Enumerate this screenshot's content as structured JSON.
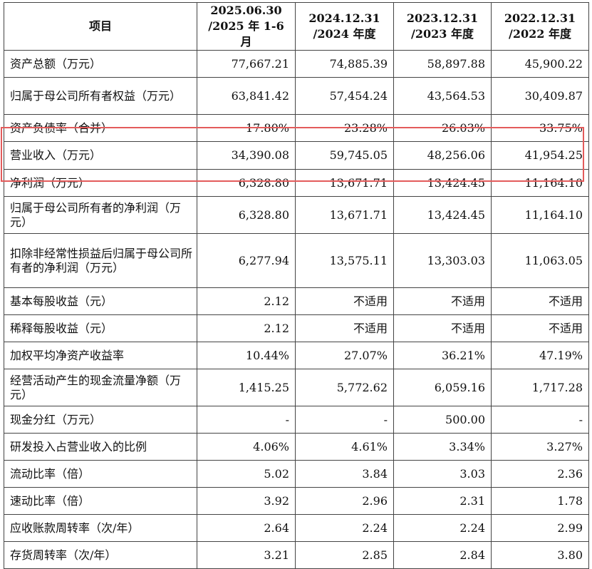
{
  "header": {
    "item": "项目",
    "columns": [
      {
        "line1": "2025.06.30",
        "line2": "/2025 年 1-6 月"
      },
      {
        "line1": "2024.12.31",
        "line2": "/2024 年度"
      },
      {
        "line1": "2023.12.31",
        "line2": "/2023 年度"
      },
      {
        "line1": "2022.12.31",
        "line2": "/2022 年度"
      }
    ]
  },
  "rows": [
    {
      "label": "资产总额（万元）",
      "values": [
        "77,667.21",
        "74,885.39",
        "58,897.88",
        "45,900.22"
      ]
    },
    {
      "label": "归属于母公司所有者权益（万元）",
      "values": [
        "63,841.42",
        "57,454.24",
        "43,564.53",
        "30,409.87"
      ]
    },
    {
      "label": "资产负债率（合并）",
      "values": [
        "17.80%",
        "23.28%",
        "26.03%",
        "33.75%"
      ]
    },
    {
      "label": "营业收入（万元）",
      "values": [
        "34,390.08",
        "59,745.05",
        "48,256.06",
        "41,954.25"
      ]
    },
    {
      "label": "净利润（万元）",
      "values": [
        "6,328.80",
        "13,671.71",
        "13,424.45",
        "11,164.10"
      ]
    },
    {
      "label": "归属于母公司所有者的净利润（万元）",
      "values": [
        "6,328.80",
        "13,671.71",
        "13,424.45",
        "11,164.10"
      ]
    },
    {
      "label": "扣除非经常性损益后归属于母公司所有者的净利润（万元）",
      "values": [
        "6,277.94",
        "13,575.11",
        "13,303.03",
        "11,063.05"
      ]
    },
    {
      "label": "基本每股收益（元）",
      "values": [
        "2.12",
        "不适用",
        "不适用",
        "不适用"
      ]
    },
    {
      "label": "稀释每股收益（元）",
      "values": [
        "2.12",
        "不适用",
        "不适用",
        "不适用"
      ]
    },
    {
      "label": "加权平均净资产收益率",
      "values": [
        "10.44%",
        "27.07%",
        "36.21%",
        "47.19%"
      ]
    },
    {
      "label": "经营活动产生的现金流量净额（万元）",
      "values": [
        "1,415.25",
        "5,772.62",
        "6,059.16",
        "1,717.28"
      ]
    },
    {
      "label": "现金分红（万元）",
      "values": [
        "-",
        "-",
        "500.00",
        "-"
      ]
    },
    {
      "label": "研发投入占营业收入的比例",
      "values": [
        "4.06%",
        "4.61%",
        "3.34%",
        "3.27%"
      ]
    },
    {
      "label": "流动比率（倍）",
      "values": [
        "5.02",
        "3.84",
        "3.03",
        "2.36"
      ]
    },
    {
      "label": "速动比率（倍）",
      "values": [
        "3.92",
        "2.96",
        "2.31",
        "1.78"
      ]
    },
    {
      "label": "应收账款周转率（次/年）",
      "values": [
        "2.64",
        "2.24",
        "2.24",
        "2.99"
      ]
    },
    {
      "label": "存货周转率（次/年）",
      "values": [
        "3.21",
        "2.85",
        "2.84",
        "3.80"
      ]
    }
  ],
  "highlight_color": "#e35b5b"
}
